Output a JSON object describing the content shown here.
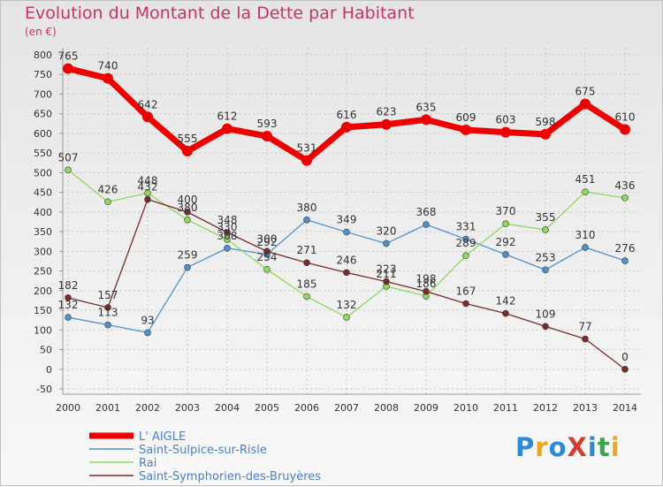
{
  "chart_data": {
    "type": "line",
    "title": "Evolution du Montant de la Dette par Habitant",
    "subtitle": "(en €)",
    "x": [
      2000,
      2001,
      2002,
      2003,
      2004,
      2005,
      2006,
      2007,
      2008,
      2009,
      2010,
      2011,
      2012,
      2013,
      2014
    ],
    "ylim": [
      -50,
      800
    ],
    "yticks": [
      -50,
      0,
      50,
      100,
      150,
      200,
      250,
      300,
      350,
      400,
      450,
      500,
      550,
      600,
      650,
      700,
      750,
      800
    ],
    "grid": true,
    "legend_position": "bottom-left",
    "series": [
      {
        "name": "L' AIGLE",
        "color": "#ee0000",
        "values": [
          765,
          740,
          642,
          555,
          612,
          593,
          531,
          616,
          623,
          635,
          609,
          603,
          598,
          675,
          610
        ]
      },
      {
        "name": "Saint-Sulpice-sur-Risle",
        "color": "#4f91cd",
        "values": [
          132,
          113,
          93,
          259,
          308,
          292,
          380,
          349,
          320,
          368,
          331,
          292,
          253,
          310,
          276
        ]
      },
      {
        "name": "Rai",
        "color": "#8fd95b",
        "values": [
          507,
          426,
          448,
          380,
          330,
          254,
          185,
          132,
          211,
          186,
          289,
          370,
          355,
          451,
          436
        ]
      },
      {
        "name": "Saint-Symphorien-des-Bruyères",
        "color": "#7a2a2a",
        "values": [
          182,
          157,
          432,
          400,
          348,
          300,
          271,
          246,
          223,
          198,
          167,
          142,
          109,
          77,
          0
        ]
      }
    ]
  },
  "logo_text": "ProXiti"
}
